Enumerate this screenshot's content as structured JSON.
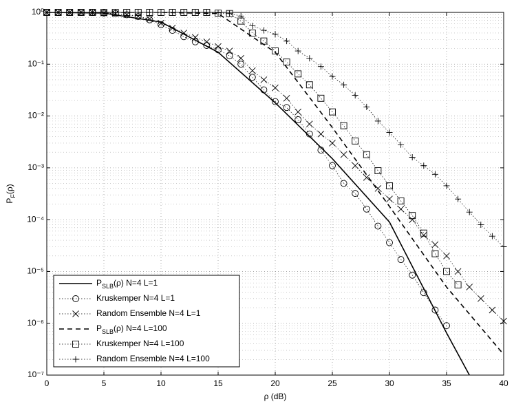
{
  "chart_data": {
    "type": "line",
    "xlabel": "ρ (dB)",
    "ylabel_parts": [
      {
        "text": "P"
      },
      {
        "text": "F",
        "sub": true
      },
      {
        "text": "(ρ)"
      }
    ],
    "xlim": [
      0,
      40
    ],
    "ylim": [
      1e-07,
      1
    ],
    "log_y": true,
    "grid": true,
    "legend_loc": "lower left",
    "xticks": [
      0,
      5,
      10,
      15,
      20,
      25,
      30,
      35,
      40
    ],
    "yticks": [
      {
        "value": 1e-07,
        "label": "10⁻⁷"
      },
      {
        "value": 1e-06,
        "label": "10⁻⁶"
      },
      {
        "value": 1e-05,
        "label": "10⁻⁵"
      },
      {
        "value": 0.0001,
        "label": "10⁻⁴"
      },
      {
        "value": 0.001,
        "label": "10⁻³"
      },
      {
        "value": 0.01,
        "label": "10⁻²"
      },
      {
        "value": 0.1,
        "label": "10⁻¹"
      },
      {
        "value": 1,
        "label": "10⁰"
      }
    ],
    "series": [
      {
        "name_parts": [
          {
            "text": "P"
          },
          {
            "text": "SLB",
            "sub": true
          },
          {
            "text": "(ρ) N=4 L=1"
          }
        ],
        "color": "#000000",
        "linestyle": "solid",
        "marker": "none",
        "x": [
          0,
          5,
          10,
          15,
          20,
          25,
          30,
          35,
          37
        ],
        "values": [
          1,
          0.97,
          0.65,
          0.17,
          0.018,
          0.0015,
          9e-05,
          6.5e-07,
          1e-07
        ]
      },
      {
        "name_parts": [
          {
            "text": "Kruskemper N=4 L=1"
          }
        ],
        "color": "#000000",
        "linestyle": "dotted",
        "marker": "o",
        "x": [
          0,
          1,
          2,
          3,
          4,
          5,
          6,
          7,
          8,
          9,
          10,
          11,
          12,
          13,
          14,
          15,
          16,
          17,
          18,
          19,
          20,
          21,
          22,
          23,
          24,
          25,
          26,
          27,
          28,
          29,
          30,
          31,
          32,
          33,
          34,
          35
        ],
        "values": [
          1,
          1,
          1,
          1,
          1,
          0.97,
          0.95,
          0.9,
          0.83,
          0.72,
          0.58,
          0.45,
          0.34,
          0.27,
          0.23,
          0.19,
          0.145,
          0.1,
          0.056,
          0.032,
          0.019,
          0.0146,
          0.0085,
          0.0045,
          0.0022,
          0.0011,
          0.0005,
          0.00032,
          0.00016,
          7.5e-05,
          3.6e-05,
          1.7e-05,
          8.5e-06,
          3.9e-06,
          1.8e-06,
          9e-07
        ]
      },
      {
        "name_parts": [
          {
            "text": "Random Ensemble N=4 L=1"
          }
        ],
        "color": "#000000",
        "linestyle": "dotted",
        "marker": "x",
        "x": [
          0,
          1,
          2,
          3,
          4,
          5,
          6,
          7,
          8,
          9,
          10,
          11,
          12,
          13,
          14,
          15,
          16,
          17,
          18,
          19,
          20,
          21,
          22,
          23,
          24,
          25,
          26,
          27,
          28,
          29,
          30,
          31,
          32,
          33,
          34,
          35,
          36,
          37,
          38,
          39,
          40
        ],
        "values": [
          1,
          1,
          1,
          1,
          1,
          0.97,
          0.95,
          0.9,
          0.84,
          0.75,
          0.62,
          0.5,
          0.4,
          0.33,
          0.27,
          0.22,
          0.18,
          0.13,
          0.075,
          0.05,
          0.035,
          0.022,
          0.012,
          0.007,
          0.0045,
          0.003,
          0.0018,
          0.0011,
          0.00065,
          0.0004,
          0.00025,
          0.00016,
          0.0001,
          5e-05,
          3.3e-05,
          2e-05,
          1e-05,
          5e-06,
          3e-06,
          1.8e-06,
          1.1e-06
        ]
      },
      {
        "name_parts": [
          {
            "text": "P"
          },
          {
            "text": "SLB",
            "sub": true
          },
          {
            "text": "(ρ) N=4 L=100"
          }
        ],
        "color": "#000000",
        "linestyle": "dashed",
        "marker": "none",
        "x": [
          0,
          10,
          15,
          20,
          25,
          30,
          35,
          40
        ],
        "values": [
          1,
          1,
          0.95,
          0.17,
          0.006,
          0.00018,
          5e-06,
          2.5e-07
        ]
      },
      {
        "name_parts": [
          {
            "text": "Kruskemper N=4 L=100"
          }
        ],
        "color": "#000000",
        "linestyle": "dotted",
        "marker": "s",
        "x": [
          0,
          1,
          2,
          3,
          4,
          5,
          6,
          7,
          8,
          9,
          10,
          11,
          12,
          13,
          14,
          15,
          16,
          17,
          18,
          19,
          20,
          21,
          22,
          23,
          24,
          25,
          26,
          27,
          28,
          29,
          30,
          31,
          32,
          33,
          34,
          35,
          36
        ],
        "values": [
          1,
          1,
          1,
          1,
          1,
          1,
          1,
          1,
          1,
          1,
          1,
          1,
          1,
          1,
          1,
          0.97,
          0.95,
          0.68,
          0.4,
          0.28,
          0.18,
          0.11,
          0.065,
          0.04,
          0.022,
          0.012,
          0.0065,
          0.0033,
          0.0018,
          0.00088,
          0.00045,
          0.00023,
          0.00012,
          5.5e-05,
          2.2e-05,
          1e-05,
          5.5e-06
        ]
      },
      {
        "name_parts": [
          {
            "text": "Random Ensemble N=4 L=100"
          }
        ],
        "color": "#000000",
        "linestyle": "dotted",
        "marker": "+",
        "x": [
          0,
          1,
          2,
          3,
          4,
          5,
          6,
          7,
          8,
          9,
          10,
          11,
          12,
          13,
          14,
          15,
          16,
          17,
          18,
          19,
          20,
          21,
          22,
          23,
          24,
          25,
          26,
          27,
          28,
          29,
          30,
          31,
          32,
          33,
          34,
          35,
          36,
          37,
          38,
          39,
          40
        ],
        "values": [
          1,
          1,
          1,
          1,
          1,
          1,
          1,
          1,
          1,
          1,
          1,
          1,
          1,
          1,
          1,
          0.98,
          0.95,
          0.85,
          0.55,
          0.45,
          0.38,
          0.28,
          0.18,
          0.13,
          0.09,
          0.058,
          0.04,
          0.025,
          0.015,
          0.008,
          0.0048,
          0.0028,
          0.0016,
          0.0011,
          0.00075,
          0.00045,
          0.00025,
          0.00014,
          8e-05,
          4.8e-05,
          3e-05
        ]
      }
    ]
  }
}
